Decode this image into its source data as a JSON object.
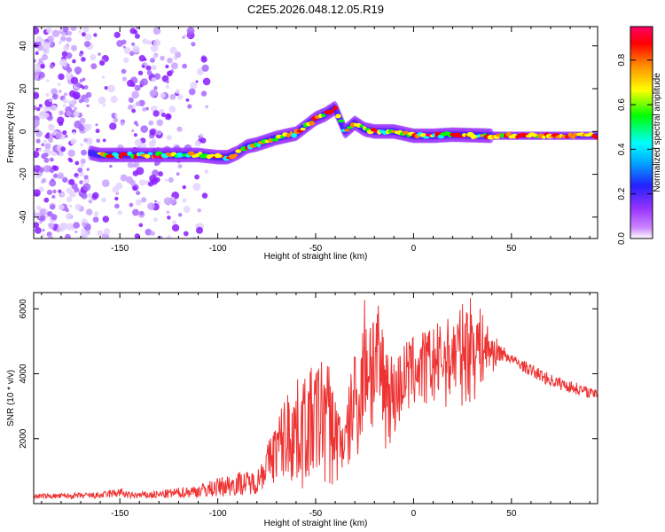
{
  "title": "C2E5.2026.048.12.05.R19",
  "chart_data": [
    {
      "type": "heatmap",
      "name": "spectrogram",
      "xlabel": "Height of straight line (km)",
      "ylabel": "Frequency (Hz)",
      "xlim": [
        -194,
        94
      ],
      "ylim": [
        -50,
        49
      ],
      "xticks": [
        -150,
        -100,
        -50,
        0,
        50
      ],
      "yticks": [
        -40,
        -20,
        0,
        20,
        40
      ],
      "xtick_labels": [
        "-150",
        "-100",
        "-50",
        "0",
        "50"
      ],
      "ytick_labels": [
        "-40",
        "-20",
        "0",
        "20",
        "40"
      ],
      "ridge": {
        "x": [
          -194,
          -170,
          -160,
          -150,
          -130,
          -110,
          -100,
          -95,
          -90,
          -85,
          -80,
          -70,
          -60,
          -50,
          -45,
          -40,
          -35,
          -30,
          -25,
          -20,
          -10,
          0,
          10,
          20,
          40,
          60,
          94
        ],
        "freq": [
          -8,
          -9,
          -11,
          -11,
          -11,
          -11,
          -12,
          -12,
          -10,
          -7,
          -6,
          -3,
          -1,
          6,
          8,
          11,
          0,
          4,
          1,
          0,
          0,
          -2,
          -2,
          -1.5,
          -2,
          -2,
          -2
        ]
      },
      "scatter_region_x": [
        -194,
        -105
      ],
      "colorbar": {
        "label": "Normalized spectral amplitude",
        "range": [
          0.0,
          0.95
        ],
        "ticks": [
          0.0,
          0.2,
          0.4,
          0.6,
          0.8
        ],
        "tick_labels": [
          "0.0",
          "0.2",
          "0.4",
          "0.6",
          "0.8"
        ],
        "colors": [
          "#ffffff",
          "#9933ff",
          "#2222ff",
          "#00ffff",
          "#00ff00",
          "#ffff00",
          "#ff8800",
          "#ff0000",
          "#ff0066"
        ]
      }
    },
    {
      "type": "line",
      "name": "snr",
      "xlabel": "Height of straight line (km)",
      "ylabel": "SNR (10 * v/v)",
      "xlim": [
        -194,
        94
      ],
      "ylim": [
        0,
        6500
      ],
      "xticks": [
        -150,
        -100,
        -50,
        0,
        50
      ],
      "yticks": [
        2000,
        4000,
        6000
      ],
      "xtick_labels": [
        "-150",
        "-100",
        "-50",
        "0",
        "50"
      ],
      "ytick_labels": [
        "2000",
        "4000",
        "6000"
      ],
      "color": "#ee3333",
      "envelope": {
        "x": [
          -194,
          -160,
          -150,
          -145,
          -130,
          -110,
          -100,
          -90,
          -80,
          -75,
          -70,
          -65,
          -60,
          -50,
          -45,
          -40,
          -35,
          -30,
          -28,
          -25,
          -20,
          -10,
          -5,
          0,
          10,
          20,
          30,
          40,
          45,
          50,
          60,
          70,
          80,
          94
        ],
        "low": [
          150,
          150,
          200,
          150,
          150,
          180,
          200,
          250,
          300,
          500,
          600,
          500,
          300,
          500,
          400,
          300,
          1000,
          900,
          1500,
          2000,
          1500,
          1800,
          2500,
          2800,
          2800,
          3000,
          3000,
          4000,
          4400,
          4300,
          3900,
          3600,
          3400,
          3200
        ],
        "high": [
          300,
          350,
          500,
          350,
          400,
          600,
          800,
          1000,
          1000,
          1800,
          2600,
          3500,
          3800,
          4300,
          4800,
          3500,
          2500,
          5300,
          4000,
          6500,
          6500,
          4500,
          5000,
          5200,
          5500,
          5800,
          6500,
          5300,
          4900,
          4600,
          4300,
          4000,
          3800,
          3500
        ]
      }
    }
  ]
}
